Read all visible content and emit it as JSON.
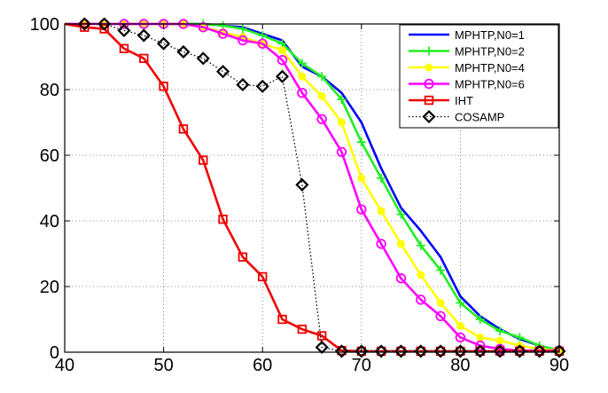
{
  "chart_data": {
    "type": "line",
    "title": "",
    "xlabel": "",
    "ylabel": "",
    "xlim": [
      40,
      90
    ],
    "ylim": [
      0,
      100
    ],
    "x_ticks": [
      40,
      50,
      60,
      70,
      80,
      90
    ],
    "y_ticks": [
      0,
      20,
      40,
      60,
      80,
      100
    ],
    "grid": "dotted",
    "legend_position": "top-right",
    "x": [
      40,
      42,
      44,
      46,
      48,
      50,
      52,
      54,
      56,
      58,
      60,
      62,
      64,
      66,
      68,
      70,
      72,
      74,
      76,
      78,
      80,
      82,
      84,
      86,
      88,
      90
    ],
    "marker_x": [
      42,
      44,
      46,
      48,
      50,
      52,
      54,
      56,
      58,
      60,
      62,
      64,
      66,
      68,
      70,
      72,
      74,
      76,
      78,
      80,
      82,
      84,
      86,
      88,
      90
    ],
    "series": [
      {
        "name": "MPHTP,N0=1",
        "color": "#0000ff",
        "marker": "none",
        "line_style": "solid",
        "values": [
          100,
          100,
          100,
          100,
          100,
          100,
          100,
          100,
          99.5,
          99,
          97,
          95,
          87,
          84,
          79,
          70,
          56,
          44,
          37,
          29,
          17,
          11,
          7,
          4,
          2,
          0.5
        ]
      },
      {
        "name": "MPHTP,N0=2",
        "color": "#22ee22",
        "marker": "plus",
        "line_style": "solid",
        "values": [
          100,
          100,
          100,
          100,
          100,
          100,
          100,
          100,
          99.5,
          98.5,
          96.5,
          94,
          88,
          84,
          77,
          64,
          53,
          42,
          32.5,
          25,
          15,
          10,
          6.5,
          4.5,
          2,
          0.5
        ]
      },
      {
        "name": "MPHTP,N0=4",
        "color": "#ffff00",
        "marker": "circle-filled",
        "line_style": "solid",
        "values": [
          100,
          100,
          100,
          100,
          100,
          100,
          100,
          99,
          97.5,
          96,
          94,
          92,
          84,
          78,
          70,
          53,
          43,
          33,
          23.5,
          15,
          8,
          4.5,
          3.5,
          2,
          1,
          0.5
        ]
      },
      {
        "name": "MPHTP,N0=6",
        "color": "#ff00ff",
        "marker": "circle-open",
        "line_style": "solid",
        "values": [
          100,
          100,
          100,
          100,
          100,
          100,
          100,
          99,
          97,
          95,
          94,
          89,
          79,
          71,
          61,
          43.5,
          33,
          22.5,
          16,
          11,
          4.5,
          2,
          1,
          0.5,
          0.5,
          0.5
        ]
      },
      {
        "name": "IHT",
        "color": "#ee0000",
        "marker": "square-open",
        "line_style": "solid",
        "values": [
          100,
          99,
          98.5,
          92.5,
          89.5,
          81,
          68,
          58.5,
          40.5,
          29,
          23,
          10,
          7,
          5,
          0.5,
          0.3,
          0.3,
          0.3,
          0.3,
          0.3,
          0.3,
          0.3,
          0.3,
          0.3,
          0.3,
          0.3
        ]
      },
      {
        "name": "COSAMP",
        "color": "#000000",
        "marker": "diamond-open",
        "line_style": "dotted",
        "values": [
          100,
          100,
          100,
          98,
          96.5,
          94,
          91.5,
          89.5,
          85.5,
          81.5,
          81,
          84,
          51,
          1.5,
          0.3,
          0.3,
          0.3,
          0.3,
          0.3,
          0.3,
          0.3,
          0.3,
          0.3,
          0.3,
          0.3,
          0.3
        ]
      }
    ]
  }
}
